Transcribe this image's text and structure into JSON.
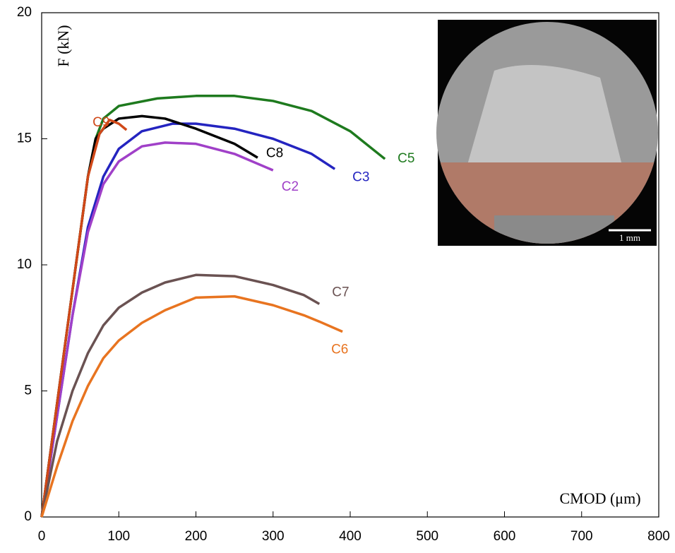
{
  "chart_data": {
    "type": "line",
    "xlabel": "CMOD (μm)",
    "ylabel": "F (kN)",
    "xlim": [
      0,
      800
    ],
    "xticks": [
      0,
      100,
      200,
      300,
      400,
      500,
      600,
      700,
      800
    ],
    "ylim": [
      0,
      20
    ],
    "yticks": [
      0,
      5,
      10,
      15,
      20
    ],
    "inset_label": "1 mm",
    "series": [
      {
        "name": "C5",
        "color": "#1e7a1e",
        "x": [
          0,
          20,
          40,
          60,
          70,
          80,
          100,
          150,
          200,
          250,
          300,
          350,
          400,
          445
        ],
        "values": [
          0,
          4.5,
          9,
          13.5,
          15,
          15.8,
          16.3,
          16.6,
          16.7,
          16.7,
          16.5,
          16.1,
          15.3,
          14.2
        ]
      },
      {
        "name": "C3",
        "color": "#2424c0",
        "x": [
          0,
          20,
          40,
          60,
          80,
          100,
          130,
          170,
          200,
          250,
          300,
          350,
          380
        ],
        "values": [
          0,
          4,
          8,
          11.5,
          13.5,
          14.6,
          15.3,
          15.6,
          15.6,
          15.4,
          15,
          14.4,
          13.8
        ]
      },
      {
        "name": "C2",
        "color": "#a040c8",
        "x": [
          0,
          20,
          40,
          60,
          80,
          100,
          130,
          160,
          200,
          250,
          300
        ],
        "values": [
          0,
          4,
          8,
          11.3,
          13.2,
          14.1,
          14.7,
          14.85,
          14.8,
          14.4,
          13.75
        ]
      },
      {
        "name": "C8",
        "color": "#000000",
        "x": [
          0,
          20,
          40,
          60,
          70,
          80,
          100,
          130,
          160,
          200,
          250,
          280
        ],
        "values": [
          0,
          4.5,
          9,
          13.5,
          15,
          15.4,
          15.8,
          15.9,
          15.8,
          15.4,
          14.8,
          14.25
        ]
      },
      {
        "name": "C9",
        "color": "#d04818",
        "x": [
          0,
          20,
          40,
          60,
          75,
          88,
          100,
          110
        ],
        "values": [
          0,
          4.5,
          9,
          13.5,
          15.2,
          15.75,
          15.6,
          15.35
        ]
      },
      {
        "name": "C7",
        "color": "#6a5252",
        "x": [
          0,
          20,
          40,
          60,
          80,
          100,
          130,
          160,
          200,
          250,
          300,
          340,
          360
        ],
        "values": [
          0,
          3,
          5,
          6.5,
          7.6,
          8.3,
          8.9,
          9.3,
          9.6,
          9.55,
          9.2,
          8.8,
          8.45
        ]
      },
      {
        "name": "C6",
        "color": "#e87420",
        "x": [
          0,
          20,
          40,
          60,
          80,
          100,
          130,
          160,
          200,
          250,
          300,
          340,
          360,
          390
        ],
        "values": [
          0,
          2,
          3.8,
          5.2,
          6.3,
          7,
          7.7,
          8.2,
          8.7,
          8.75,
          8.4,
          8,
          7.75,
          7.35
        ]
      }
    ]
  }
}
